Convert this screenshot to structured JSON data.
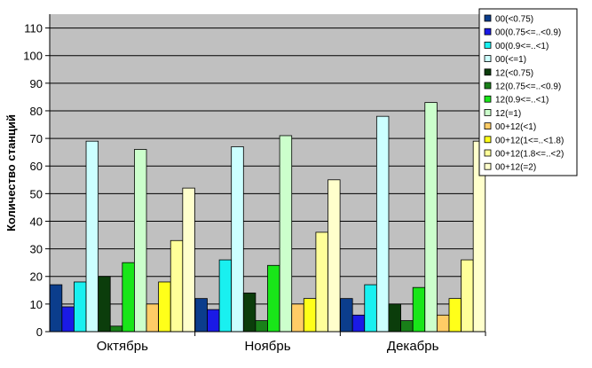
{
  "chart_data": {
    "type": "bar",
    "ylabel": "Количество станций",
    "xlabel": "",
    "ylim": [
      0,
      115
    ],
    "yticks": [
      0,
      10,
      20,
      30,
      40,
      50,
      60,
      70,
      80,
      90,
      100,
      110
    ],
    "grid": "horizontal",
    "legend_position": "top-right",
    "categories": [
      "Октябрь",
      "Ноябрь",
      "Декабрь"
    ],
    "series": [
      {
        "name": "00(<0.75)",
        "color": "#0b3d8c",
        "values": [
          17,
          12,
          12
        ]
      },
      {
        "name": "00(0.75<=..<0.9)",
        "color": "#1a1ae6",
        "values": [
          9,
          8,
          6
        ]
      },
      {
        "name": "00(0.9<=..<1)",
        "color": "#19f0f0",
        "values": [
          18,
          26,
          17
        ]
      },
      {
        "name": "00(<=1)",
        "color": "#ccffff",
        "values": [
          69,
          67,
          78
        ]
      },
      {
        "name": "12(<0.75)",
        "color": "#0b3d0b",
        "values": [
          20,
          14,
          10
        ]
      },
      {
        "name": "12(0.75<=..<0.9)",
        "color": "#198019",
        "values": [
          2,
          4,
          4
        ]
      },
      {
        "name": "12(0.9<=..<1)",
        "color": "#19e619",
        "values": [
          25,
          24,
          16
        ]
      },
      {
        "name": "12(=1)",
        "color": "#ccffcc",
        "values": [
          66,
          71,
          83
        ]
      },
      {
        "name": "00+12(<1)",
        "color": "#ffcc66",
        "values": [
          10,
          10,
          6
        ]
      },
      {
        "name": "00+12(1<=..<1.8)",
        "color": "#ffff19",
        "values": [
          18,
          12,
          12
        ]
      },
      {
        "name": "00+12(1.8<=..<2)",
        "color": "#ffff99",
        "values": [
          33,
          36,
          26
        ]
      },
      {
        "name": "00+12(=2)",
        "color": "#ffffcc",
        "values": [
          52,
          55,
          69
        ]
      }
    ]
  }
}
